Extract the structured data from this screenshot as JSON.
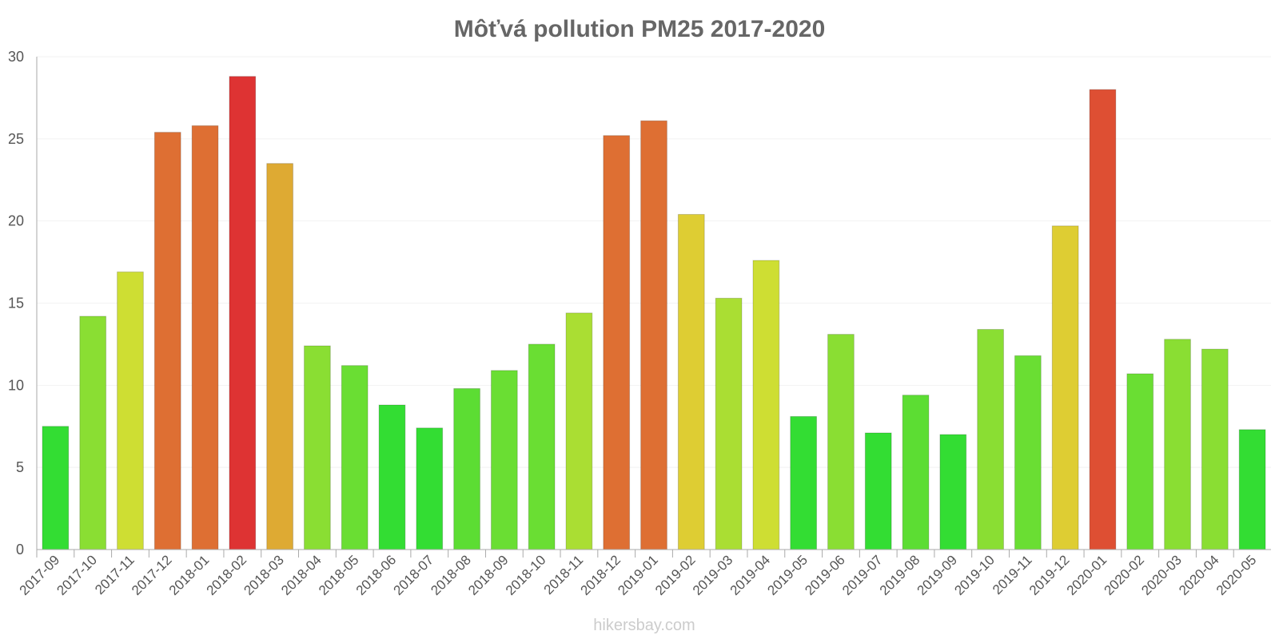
{
  "watermark": "hikersbay.com",
  "chart_data": {
    "type": "bar",
    "title": "Môťvá pollution PM25 2017-2020",
    "xlabel": "",
    "ylabel": "",
    "ylim": [
      0,
      30
    ],
    "yticks": [
      "0",
      "5",
      "10",
      "15",
      "20",
      "25",
      "30"
    ],
    "grid": true,
    "categories": [
      "2017-09",
      "2017-10",
      "2017-11",
      "2017-12",
      "2018-01",
      "2018-02",
      "2018-03",
      "2018-04",
      "2018-05",
      "2018-06",
      "2018-07",
      "2018-08",
      "2018-09",
      "2018-10",
      "2018-11",
      "2018-12",
      "2019-01",
      "2019-02",
      "2019-03",
      "2019-04",
      "2019-05",
      "2019-06",
      "2019-07",
      "2019-08",
      "2019-09",
      "2019-10",
      "2019-11",
      "2019-12",
      "2020-01",
      "2020-02",
      "2020-03",
      "2020-04",
      "2020-05"
    ],
    "values": [
      7.5,
      14.2,
      16.9,
      25.4,
      25.8,
      28.8,
      23.5,
      12.4,
      11.2,
      8.8,
      7.4,
      9.8,
      10.9,
      12.5,
      14.4,
      25.2,
      26.1,
      20.4,
      15.3,
      17.6,
      8.1,
      13.1,
      7.1,
      9.4,
      7.0,
      13.4,
      11.8,
      19.7,
      28.0,
      10.7,
      12.8,
      12.2,
      7.3
    ],
    "colors": [
      "#33dd33",
      "#8ade33",
      "#cede33",
      "#de6f33",
      "#de6f33",
      "#de3333",
      "#deaa33",
      "#8ade33",
      "#6ade33",
      "#33dd33",
      "#33dd33",
      "#5cdd33",
      "#6ade33",
      "#6ade33",
      "#aade33",
      "#de6f33",
      "#de6f33",
      "#decd33",
      "#aade33",
      "#cede33",
      "#33dd33",
      "#8ade33",
      "#33dd33",
      "#5cdd33",
      "#33dd33",
      "#8ade33",
      "#6ade33",
      "#decd33",
      "#de4f33",
      "#6ade33",
      "#8ade33",
      "#8ade33",
      "#33dd33"
    ]
  }
}
